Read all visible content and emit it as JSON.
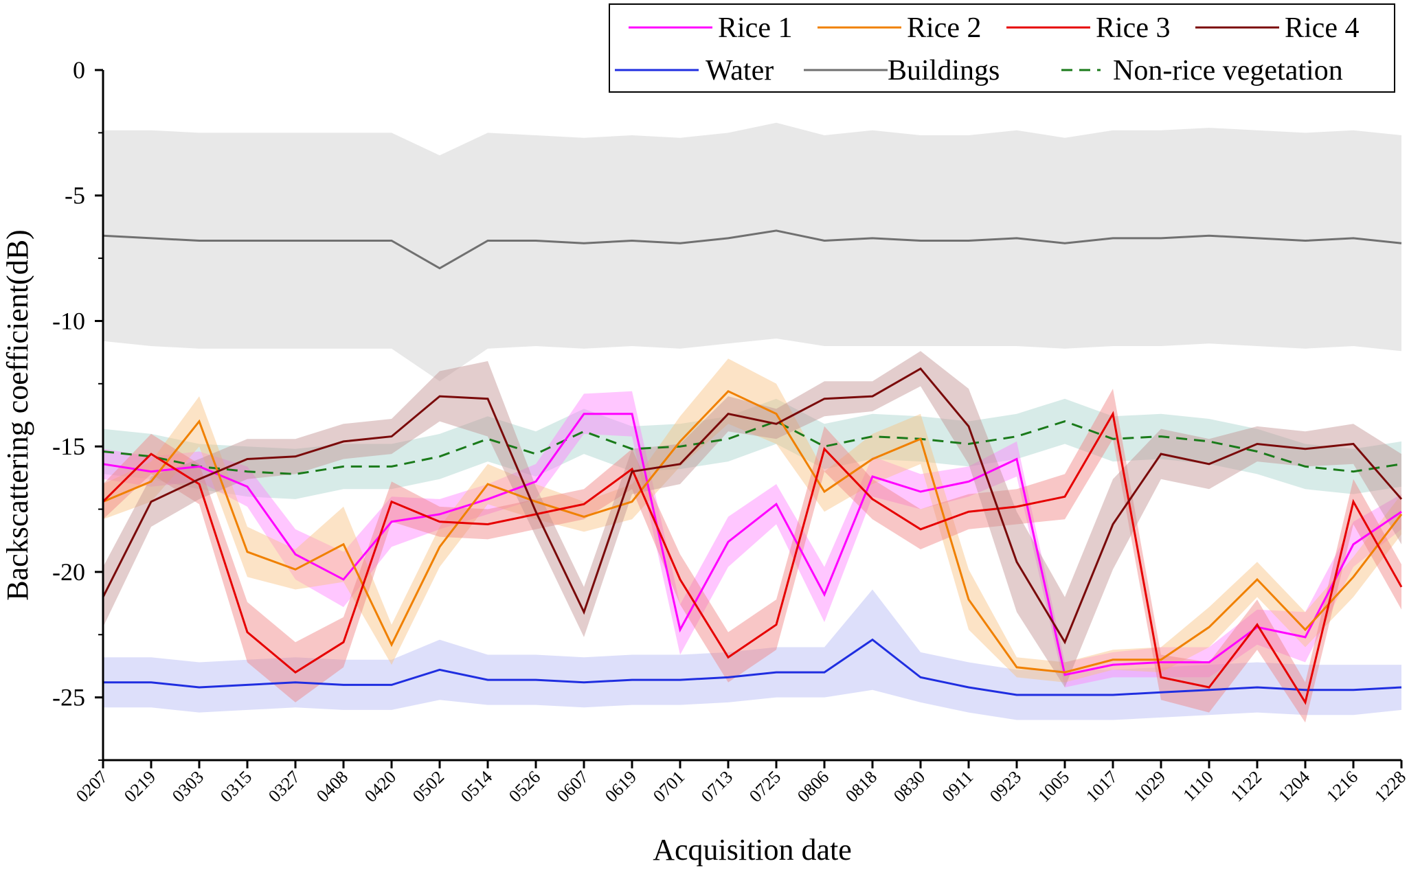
{
  "chart_data": {
    "type": "line",
    "xlabel": "Acquisition date",
    "ylabel": "Backscattering coefficient(dB)",
    "ylim": [
      -27.5,
      0
    ],
    "yticks": [
      0,
      -5,
      -10,
      -15,
      -20,
      -25
    ],
    "grid": false,
    "legend_position": "top-right",
    "categories": [
      "0207",
      "0219",
      "0303",
      "0315",
      "0327",
      "0408",
      "0420",
      "0502",
      "0514",
      "0526",
      "0607",
      "0619",
      "0701",
      "0713",
      "0725",
      "0806",
      "0818",
      "0830",
      "0911",
      "0923",
      "1005",
      "1017",
      "1029",
      "1110",
      "1122",
      "1204",
      "1216",
      "1228"
    ],
    "series": [
      {
        "name": "Rice 1",
        "color": "#ff00ff",
        "band_color": "#ff80ff",
        "dash": false,
        "values": [
          -15.7,
          -16,
          -15.8,
          -16.6,
          -19.3,
          -20.3,
          -18,
          -17.7,
          -17.1,
          -16.4,
          -13.7,
          -13.7,
          -22.3,
          -18.8,
          -17.3,
          -20.9,
          -16.2,
          -16.8,
          -16.4,
          -15.5,
          -24.1,
          -23.7,
          -23.6,
          -23.6,
          -22.2,
          -22.6,
          -18.9,
          -17.6
        ],
        "spread": [
          0.6,
          0.6,
          0.6,
          0.8,
          1,
          1.1,
          1,
          0.6,
          0.6,
          0.7,
          0.8,
          0.9,
          1,
          1,
          0.8,
          1.1,
          0.8,
          0.7,
          0.6,
          0.7,
          0.5,
          0.5,
          0.6,
          0.6,
          0.7,
          1,
          0.9,
          0.7
        ]
      },
      {
        "name": "Rice 2",
        "color": "#f08000",
        "band_color": "#f9c080",
        "dash": false,
        "values": [
          -17.2,
          -16.4,
          -14,
          -19.2,
          -19.9,
          -18.9,
          -22.9,
          -19,
          -16.5,
          -17.2,
          -17.8,
          -17.2,
          -14.8,
          -12.8,
          -13.7,
          -16.8,
          -15.5,
          -14.7,
          -21.1,
          -23.8,
          -24,
          -23.5,
          -23.5,
          -22.2,
          -20.3,
          -22.3,
          -20.2,
          -17.7
        ],
        "spread": [
          0.7,
          0.8,
          1,
          1,
          0.8,
          1.5,
          0.8,
          0.8,
          0.8,
          0.7,
          0.6,
          0.7,
          1,
          1.3,
          1.2,
          0.8,
          1,
          1,
          1.2,
          0.4,
          0.4,
          0.4,
          0.5,
          0.8,
          0.7,
          0.7,
          0.8,
          0.8
        ]
      },
      {
        "name": "Rice 3",
        "color": "#e60000",
        "band_color": "#f08080",
        "dash": false,
        "values": [
          -17.2,
          -15.3,
          -16.5,
          -22.4,
          -24,
          -22.8,
          -17.2,
          -18,
          -18.1,
          -17.7,
          -17.3,
          -15.9,
          -20.3,
          -23.4,
          -22.1,
          -15.1,
          -17.1,
          -18.3,
          -17.6,
          -17.4,
          -17,
          -13.7,
          -24.2,
          -24.6,
          -22.1,
          -25.2,
          -17.2,
          -20.6
        ],
        "spread": [
          0.7,
          0.8,
          0.8,
          1.2,
          1.2,
          1,
          0.8,
          0.6,
          0.6,
          0.6,
          0.6,
          0.8,
          1,
          1,
          1,
          0.9,
          0.8,
          0.8,
          0.7,
          0.7,
          0.9,
          1,
          0.9,
          1,
          1,
          0.8,
          0.9,
          0.9
        ]
      },
      {
        "name": "Rice 4",
        "color": "#7a0a0a",
        "band_color": "#c09090",
        "dash": false,
        "values": [
          -21,
          -17.2,
          -16.3,
          -15.5,
          -15.4,
          -14.8,
          -14.6,
          -13,
          -13.1,
          -17.6,
          -21.6,
          -16,
          -15.7,
          -13.7,
          -14.1,
          -13.1,
          -13,
          -11.9,
          -14.2,
          -19.6,
          -22.8,
          -18.1,
          -15.3,
          -15.7,
          -14.9,
          -15.1,
          -14.9,
          -17.1
        ],
        "spread": [
          1.2,
          1,
          0.8,
          0.8,
          0.7,
          0.7,
          0.7,
          1,
          1.5,
          1,
          1,
          0.9,
          0.8,
          0.7,
          0.6,
          0.7,
          0.6,
          0.7,
          1.5,
          2,
          1.8,
          1.8,
          1,
          1,
          0.7,
          0.7,
          0.8,
          1.8
        ]
      },
      {
        "name": "Water",
        "color": "#1f2ee0",
        "band_color": "#b3b8f4",
        "dash": false,
        "values": [
          -24.4,
          -24.4,
          -24.6,
          -24.5,
          -24.4,
          -24.5,
          -24.5,
          -23.9,
          -24.3,
          -24.3,
          -24.4,
          -24.3,
          -24.3,
          -24.2,
          -24,
          -24,
          -22.7,
          -24.2,
          -24.6,
          -24.9,
          -24.9,
          -24.9,
          -24.8,
          -24.7,
          -24.6,
          -24.7,
          -24.7,
          -24.6
        ],
        "spread": [
          1,
          1,
          1,
          1,
          1,
          1,
          1,
          1.2,
          1,
          1,
          1,
          1,
          1,
          1,
          1,
          1,
          2,
          1,
          1,
          1,
          1,
          1,
          1,
          1,
          1,
          1,
          1,
          0.9
        ]
      },
      {
        "name": "Buildings",
        "color": "#707070",
        "band_color": "#e4e4e4",
        "dash": false,
        "values": [
          -6.6,
          -6.7,
          -6.8,
          -6.8,
          -6.8,
          -6.8,
          -6.8,
          -7.9,
          -6.8,
          -6.8,
          -6.9,
          -6.8,
          -6.9,
          -6.7,
          -6.4,
          -6.8,
          -6.7,
          -6.8,
          -6.8,
          -6.7,
          -6.9,
          -6.7,
          -6.7,
          -6.6,
          -6.7,
          -6.8,
          -6.7,
          -6.9
        ],
        "spread": [
          4.2,
          4.3,
          4.3,
          4.3,
          4.3,
          4.3,
          4.3,
          4.5,
          4.3,
          4.2,
          4.2,
          4.2,
          4.2,
          4.2,
          4.3,
          4.2,
          4.3,
          4.2,
          4.2,
          4.3,
          4.2,
          4.3,
          4.3,
          4.3,
          4.3,
          4.3,
          4.3,
          4.3
        ]
      },
      {
        "name": "Non-rice vegetation",
        "color": "#1a7a1a",
        "band_color": "#a6d2cc",
        "dash": true,
        "values": [
          -15.2,
          -15.4,
          -15.8,
          -16,
          -16.1,
          -15.8,
          -15.8,
          -15.4,
          -14.7,
          -15.3,
          -14.4,
          -15.1,
          -15,
          -14.7,
          -14,
          -15,
          -14.6,
          -14.7,
          -14.9,
          -14.6,
          -14,
          -14.7,
          -14.6,
          -14.8,
          -15.2,
          -15.8,
          -16,
          -15.7
        ],
        "spread": [
          0.9,
          0.9,
          0.9,
          1,
          1,
          0.9,
          0.9,
          0.9,
          0.9,
          0.9,
          0.9,
          0.9,
          0.9,
          0.9,
          0.9,
          0.9,
          0.9,
          0.9,
          0.9,
          0.9,
          0.9,
          0.9,
          0.9,
          0.9,
          0.9,
          0.9,
          0.9,
          0.9
        ]
      }
    ],
    "legend_rows": [
      [
        "Rice 1",
        "Rice 2",
        "Rice 3",
        "Rice 4"
      ],
      [
        "Water",
        "Buildings",
        "Non-rice vegetation"
      ]
    ]
  }
}
